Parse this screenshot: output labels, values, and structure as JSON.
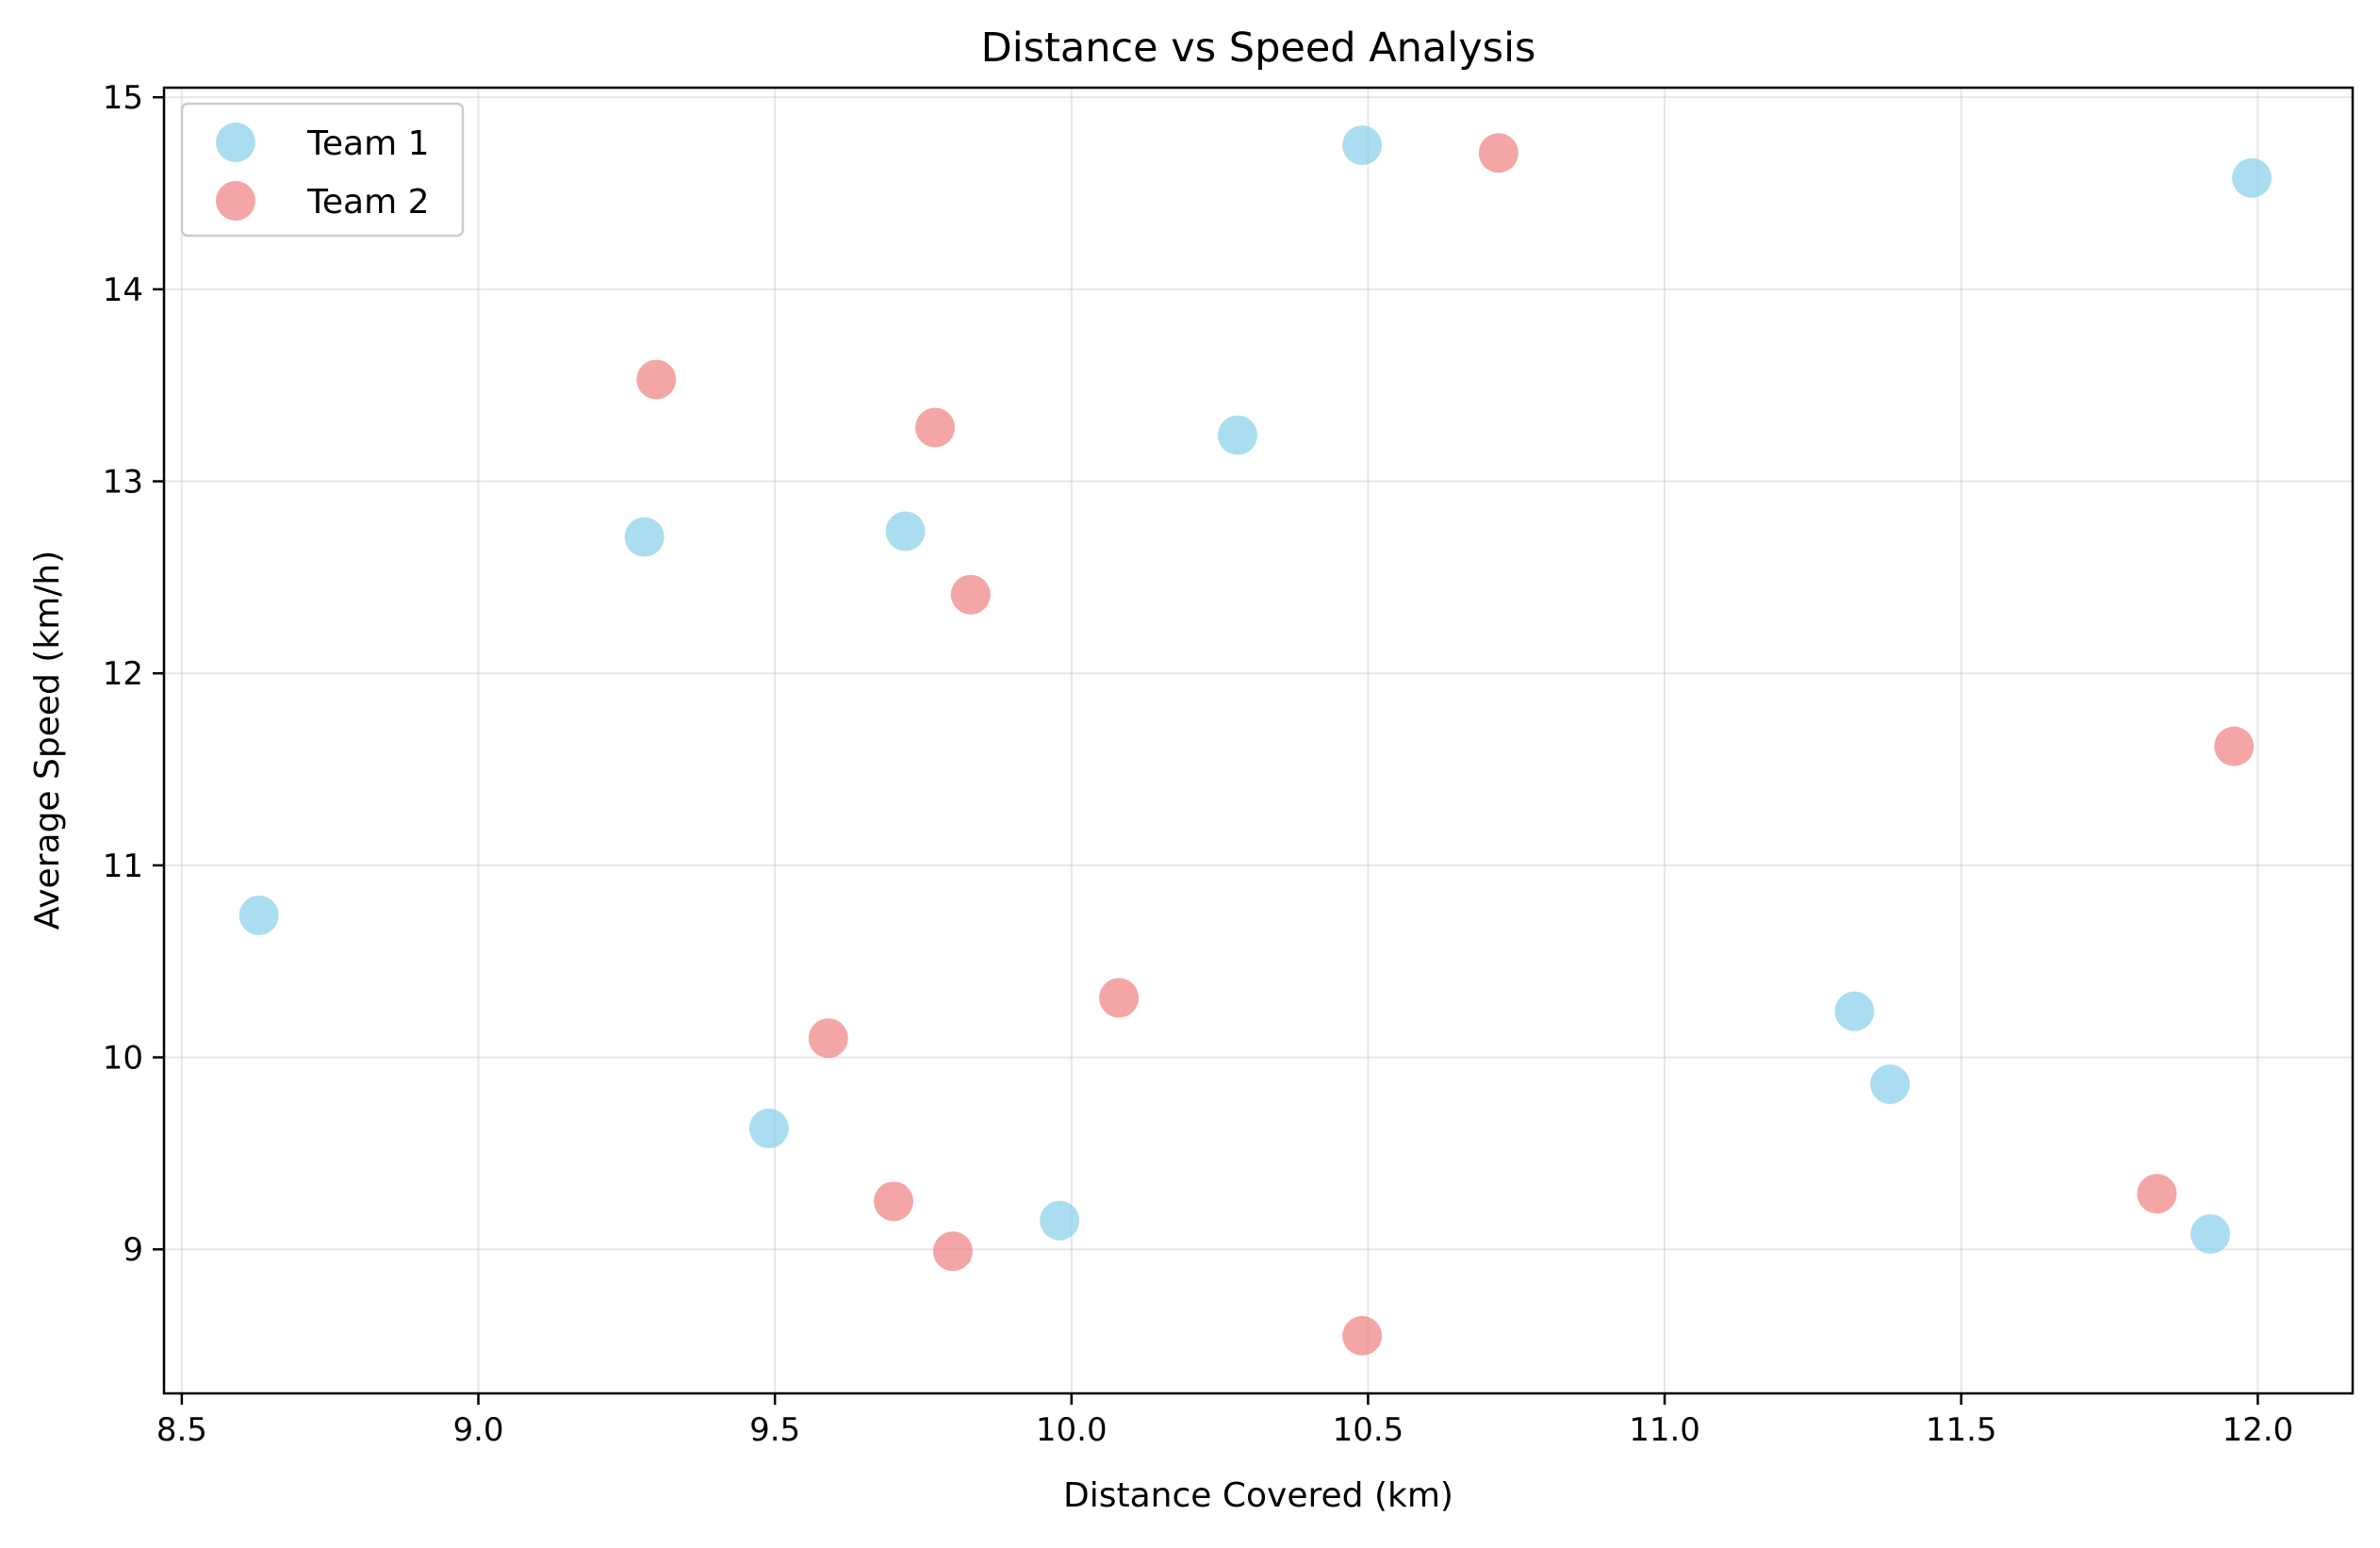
{
  "chart_data": {
    "type": "scatter",
    "title": "Distance vs Speed Analysis",
    "xlabel": "Distance Covered (km)",
    "ylabel": "Average Speed (km/h)",
    "xlim": [
      8.47,
      12.16
    ],
    "ylim": [
      8.25,
      15.05
    ],
    "xticks": [
      8.5,
      9.0,
      9.5,
      10.0,
      10.5,
      11.0,
      11.5,
      12.0
    ],
    "xtick_labels": [
      "8.5",
      "9.0",
      "9.5",
      "10.0",
      "10.5",
      "11.0",
      "11.5",
      "12.0"
    ],
    "yticks": [
      9,
      10,
      11,
      12,
      13,
      14,
      15
    ],
    "ytick_labels": [
      "9",
      "10",
      "11",
      "12",
      "13",
      "14",
      "15"
    ],
    "grid": true,
    "legend_position": "upper-left",
    "series": [
      {
        "name": "Team 1",
        "color": "#87ceeb",
        "points": [
          {
            "x": 8.63,
            "y": 10.74
          },
          {
            "x": 9.28,
            "y": 12.71
          },
          {
            "x": 9.49,
            "y": 9.63
          },
          {
            "x": 9.72,
            "y": 12.74
          },
          {
            "x": 9.98,
            "y": 9.15
          },
          {
            "x": 10.28,
            "y": 13.24
          },
          {
            "x": 10.49,
            "y": 14.75
          },
          {
            "x": 11.32,
            "y": 10.24
          },
          {
            "x": 11.38,
            "y": 9.86
          },
          {
            "x": 11.92,
            "y": 9.08
          },
          {
            "x": 11.99,
            "y": 14.58
          }
        ]
      },
      {
        "name": "Team 2",
        "color": "#f08080",
        "points": [
          {
            "x": 9.3,
            "y": 13.53
          },
          {
            "x": 9.59,
            "y": 10.1
          },
          {
            "x": 9.7,
            "y": 9.25
          },
          {
            "x": 9.77,
            "y": 13.28
          },
          {
            "x": 9.8,
            "y": 8.99
          },
          {
            "x": 9.83,
            "y": 12.41
          },
          {
            "x": 10.08,
            "y": 10.31
          },
          {
            "x": 10.49,
            "y": 8.55
          },
          {
            "x": 10.72,
            "y": 14.71
          },
          {
            "x": 11.83,
            "y": 9.29
          },
          {
            "x": 11.96,
            "y": 11.62
          }
        ]
      }
    ]
  }
}
